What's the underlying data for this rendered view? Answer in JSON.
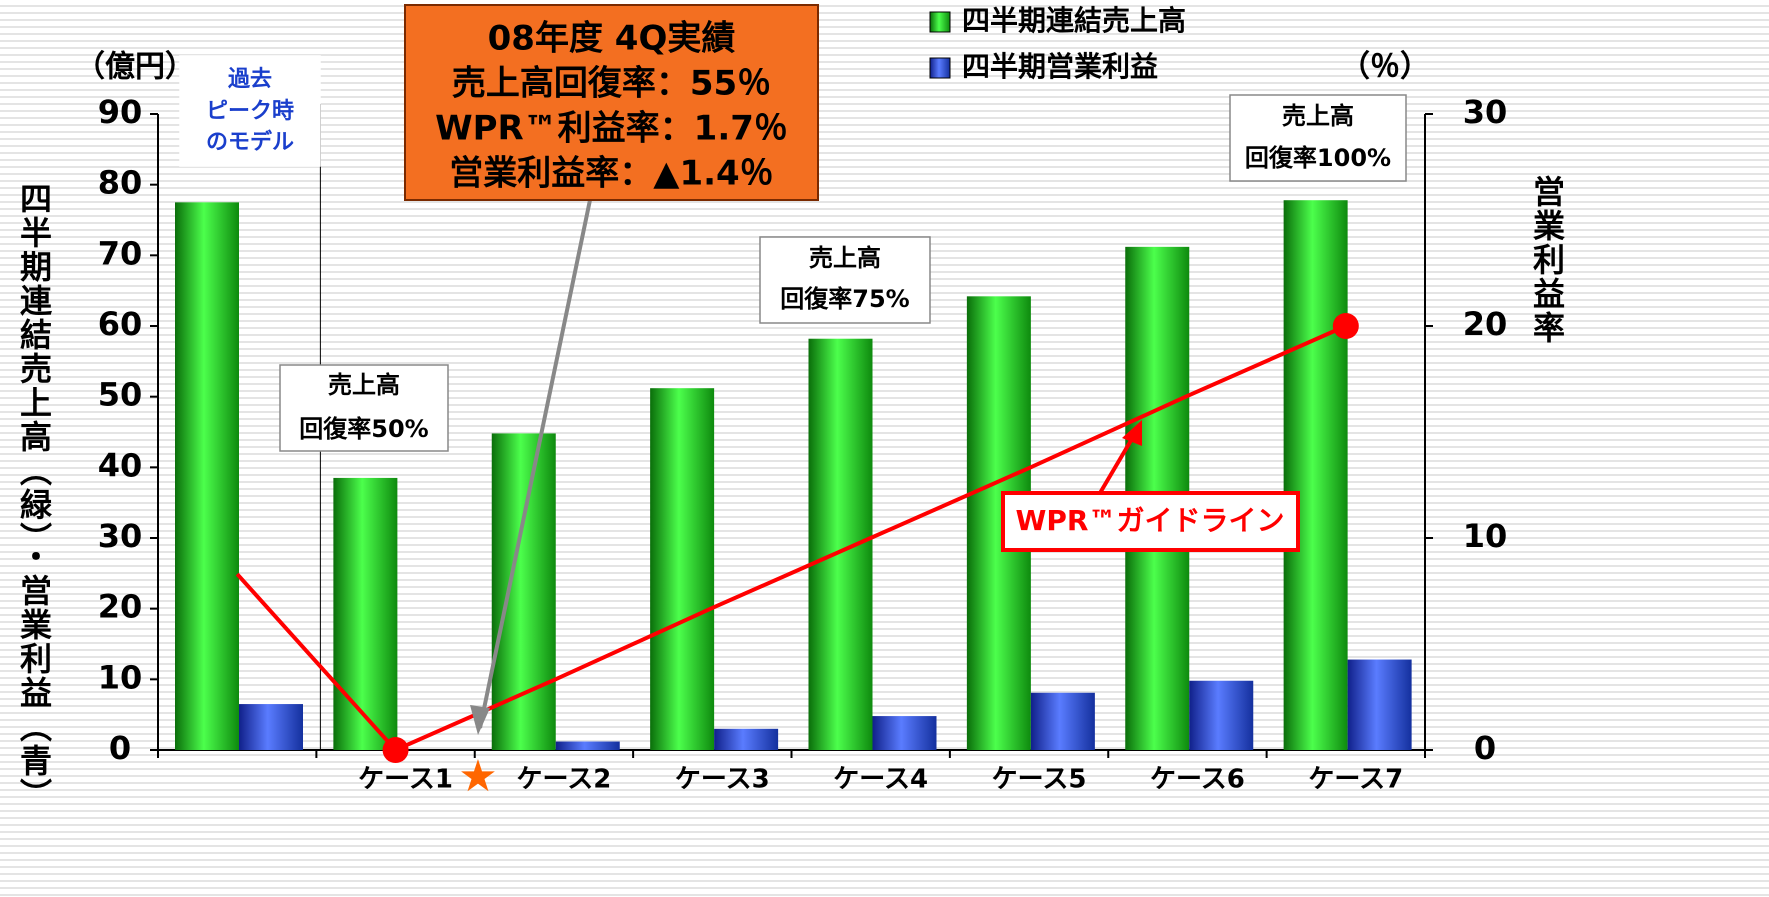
{
  "chart_data": {
    "type": "bar",
    "categories": [
      null,
      "ケース1",
      "ケース2",
      "ケース3",
      "ケース4",
      "ケース5",
      "ケース6",
      "ケース7"
    ],
    "series": [
      {
        "name": "四半期連結売上高",
        "color": "#22c022",
        "values": [
          77.5,
          38.5,
          44.8,
          51.2,
          58.2,
          64.2,
          71.2,
          77.8
        ]
      },
      {
        "name": "四半期営業利益",
        "color": "#2a4fd8",
        "values": [
          6.5,
          0,
          1.2,
          3.0,
          4.8,
          8.1,
          9.8,
          12.8
        ]
      },
      {
        "name": "WPR™ガイドライン",
        "type": "line",
        "axis": "y2",
        "color": "#ff0000",
        "values": [
          8.3,
          0,
          3.3,
          6.7,
          10,
          13.3,
          16.7,
          20
        ],
        "marker_indices": [
          1,
          7
        ]
      }
    ],
    "ylim": [
      0,
      90
    ],
    "yticks": [
      0,
      10,
      20,
      30,
      40,
      50,
      60,
      70,
      80,
      90
    ],
    "y2lim": [
      0,
      30
    ],
    "y2ticks": [
      0,
      10,
      20,
      30
    ],
    "y_label": "四半期連結売上高（緑）・営業利益（青）",
    "y2_label": "営業利益率",
    "y_unit": "（億円）",
    "y2_unit": "（％）",
    "annotations": {
      "past_peak": [
        "過去",
        "ピーク時",
        "のモデル"
      ],
      "recovery_50": [
        "売上高",
        "回復率50%"
      ],
      "recovery_75": [
        "売上高",
        "回復率75%"
      ],
      "recovery_100": [
        "売上高",
        "回復率100%"
      ],
      "results": [
        "08年度 4Q実績",
        "売上高回復率：55％",
        "WPR™利益率：1.7％",
        "営業利益率：▲1.4％"
      ]
    }
  }
}
